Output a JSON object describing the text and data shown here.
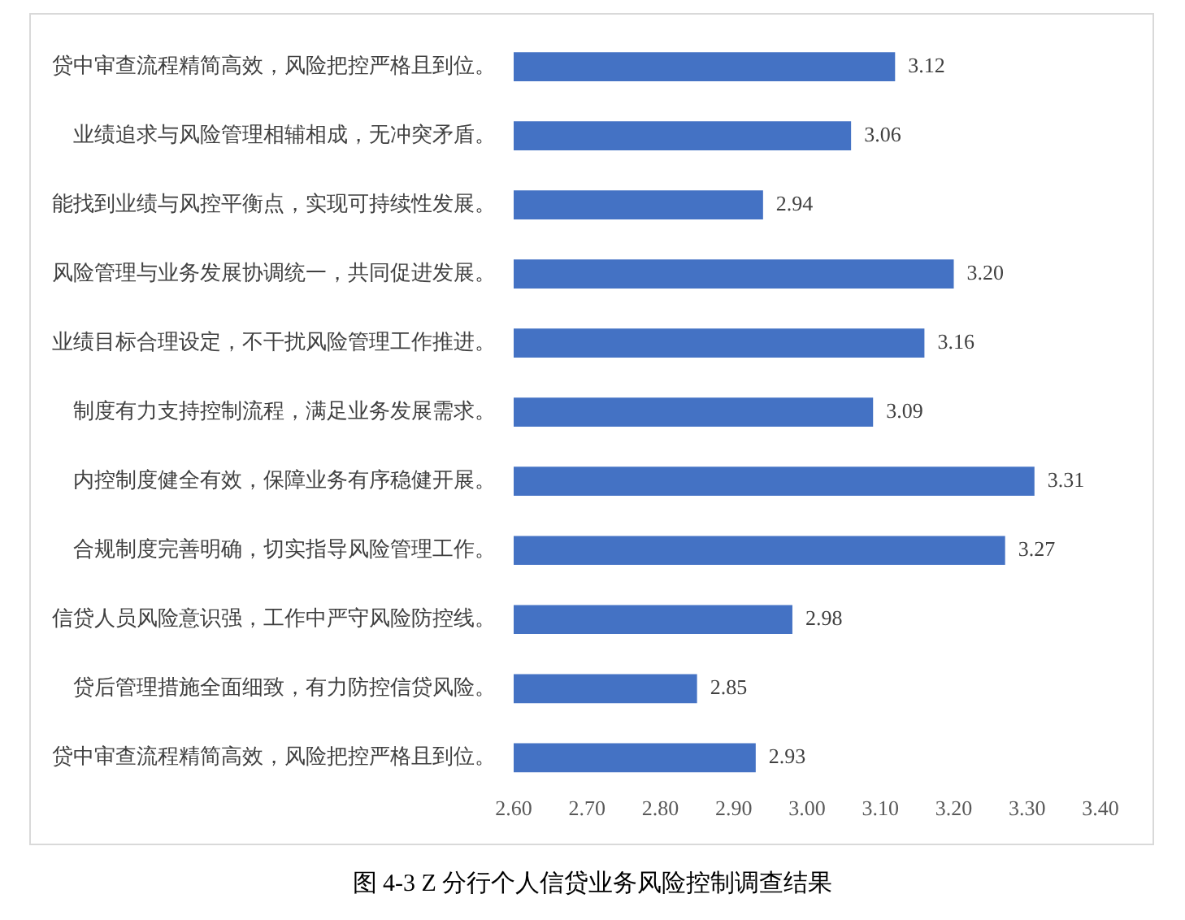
{
  "chart_data": {
    "type": "bar",
    "orientation": "horizontal",
    "title": "图 4-3 Z 分行个人信贷业务风险控制调查结果",
    "categories": [
      "贷中审查流程精简高效，风险把控严格且到位。",
      "业绩追求与风险管理相辅相成，无冲突矛盾。",
      "能找到业绩与风控平衡点，实现可持续性发展。",
      "风险管理与业务发展协调统一，共同促进发展。",
      "业绩目标合理设定，不干扰风险管理工作推进。",
      "制度有力支持控制流程，满足业务发展需求。",
      "内控制度健全有效，保障业务有序稳健开展。",
      "合规制度完善明确，切实指导风险管理工作。",
      "信贷人员风险意识强，工作中严守风险防控线。",
      "贷后管理措施全面细致，有力防控信贷风险。",
      "贷中审查流程精简高效，风险把控严格且到位。"
    ],
    "values": [
      3.12,
      3.06,
      2.94,
      3.2,
      3.16,
      3.09,
      3.31,
      3.27,
      2.98,
      2.85,
      2.93
    ],
    "value_labels": [
      "3.12",
      "3.06",
      "2.94",
      "3.20",
      "3.16",
      "3.09",
      "3.31",
      "3.27",
      "2.98",
      "2.85",
      "2.93"
    ],
    "color": "#4472c4",
    "xlim": [
      2.6,
      3.4
    ],
    "xticks": [
      {
        "value": 2.6,
        "label": "2.60"
      },
      {
        "value": 2.7,
        "label": "2.70"
      },
      {
        "value": 2.8,
        "label": "2.80"
      },
      {
        "value": 2.9,
        "label": "2.90"
      },
      {
        "value": 3.0,
        "label": "3.00"
      },
      {
        "value": 3.1,
        "label": "3.10"
      },
      {
        "value": 3.2,
        "label": "3.20"
      },
      {
        "value": 3.3,
        "label": "3.30"
      },
      {
        "value": 3.4,
        "label": "3.40"
      }
    ],
    "grid": false,
    "legend": false
  }
}
